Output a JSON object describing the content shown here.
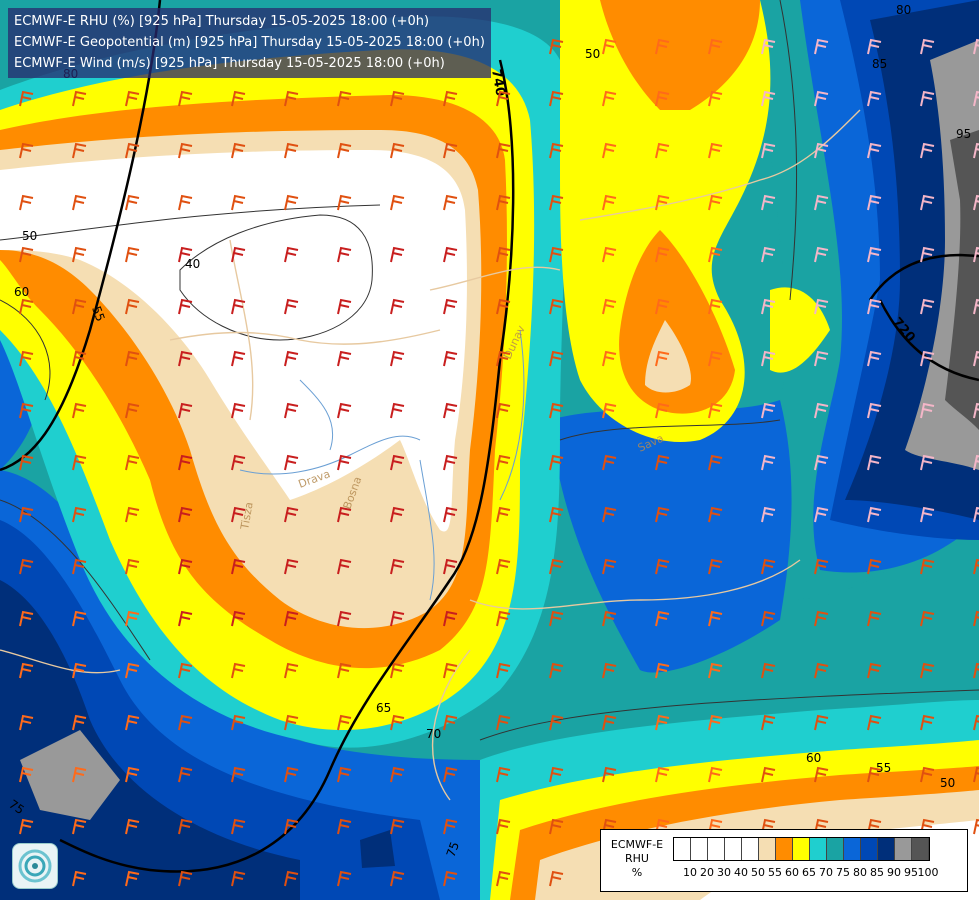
{
  "titles": {
    "line1": "ECMWF-E RHU (%) [925 hPa] Thursday 15-05-2025 18:00 (+0h)",
    "line2": "ECMWF-E Geopotential (m) [925 hPa] Thursday 15-05-2025 18:00 (+0h)",
    "line3": "ECMWF-E Wind (m/s) [925 hPa] Thursday 15-05-2025 18:00 (+0h)"
  },
  "legend": {
    "title": "ECMWF-E",
    "field": "RHU",
    "unit": "%",
    "ticks": [
      "10",
      "20",
      "30",
      "40",
      "50",
      "55",
      "60",
      "65",
      "70",
      "75",
      "80",
      "85",
      "90",
      "95",
      "100"
    ],
    "colors": [
      "#ffffff",
      "#ffffff",
      "#ffffff",
      "#ffffff",
      "#ffffff",
      "#f5deb3",
      "#ff8c00",
      "#ffff00",
      "#1fcfcf",
      "#1aa3a3",
      "#0a66d8",
      "#0048b5",
      "#002f7a",
      "#999999",
      "#555555"
    ]
  },
  "contour_labels": {
    "rhu": [
      "40",
      "50",
      "50",
      "55",
      "60",
      "65",
      "70",
      "75",
      "75",
      "80",
      "80",
      "85",
      "95",
      "60",
      "55",
      "50"
    ],
    "geopotential": [
      "740",
      "720"
    ]
  },
  "places": [
    "Dunav",
    "Drava",
    "Sava",
    "Tisza",
    "Bosna"
  ],
  "logo": "ecmwf-swirl-logo"
}
